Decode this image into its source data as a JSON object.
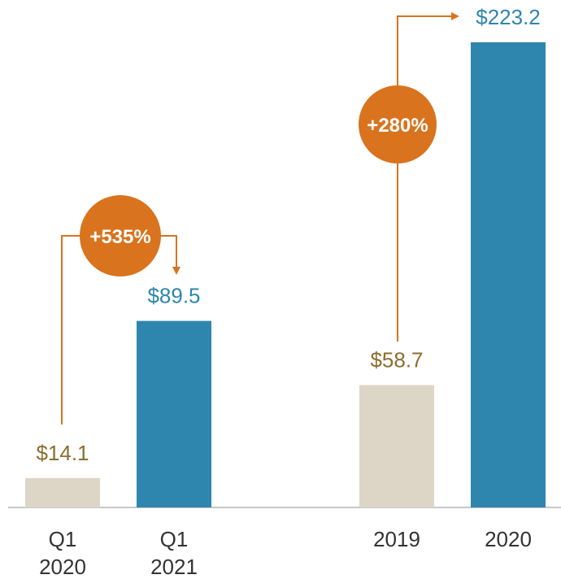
{
  "chart_data": {
    "type": "bar",
    "categories": [
      "Q1 2020",
      "Q1 2021",
      "2019",
      "2020"
    ],
    "values": [
      14.1,
      89.5,
      58.7,
      223.2
    ],
    "value_labels": [
      "$14.1",
      "$89.5",
      "$58.7",
      "$223.2"
    ],
    "colors": [
      "#ddd5c6",
      "#2e86ae",
      "#ddd5c6",
      "#2e86ae"
    ],
    "label_colors": [
      "#8b6d2e",
      "#2e86ae",
      "#8b6d2e",
      "#2e86ae"
    ],
    "annotations": [
      "+535%",
      "+280%"
    ]
  }
}
